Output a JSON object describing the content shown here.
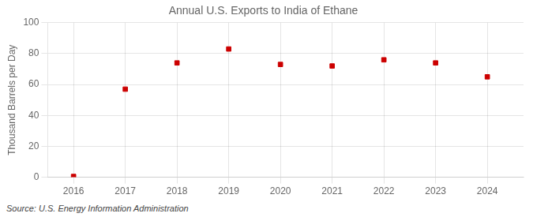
{
  "chart_data": {
    "type": "scatter",
    "title": "Annual U.S. Exports to India of Ethane",
    "ylabel": "Thousand Barrels per Day",
    "source": "Source: U.S. Energy Information Administration",
    "x": [
      2016,
      2017,
      2018,
      2019,
      2020,
      2021,
      2022,
      2023,
      2024
    ],
    "values": [
      0.5,
      57,
      74,
      83,
      73,
      72,
      76,
      74,
      65
    ],
    "color": "#cc0000",
    "marker": "square",
    "xlim": [
      2015.5,
      2024.7
    ],
    "xticks": [
      2016,
      2017,
      2018,
      2019,
      2020,
      2021,
      2022,
      2023,
      2024
    ],
    "ylim": [
      0,
      100
    ],
    "yticks": [
      0,
      20,
      40,
      60,
      80,
      100
    ],
    "grid": true
  }
}
